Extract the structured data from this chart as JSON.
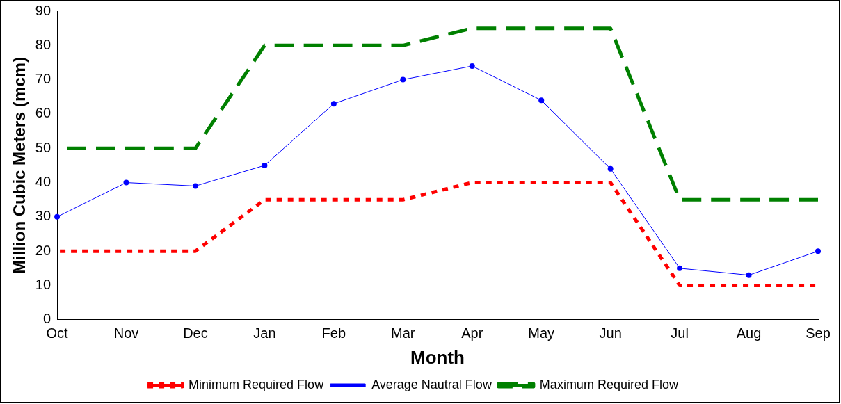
{
  "chart_data": {
    "type": "line",
    "xlabel": "Month",
    "ylabel": "Million Cubic Meters (mcm)",
    "categories": [
      "Oct",
      "Nov",
      "Dec",
      "Jan",
      "Feb",
      "Mar",
      "Apr",
      "May",
      "Jun",
      "Jul",
      "Aug",
      "Sep"
    ],
    "series": [
      {
        "name": "Minimum Required Flow",
        "color": "#ff0000",
        "line_style": "dotted",
        "marker": "none",
        "values": [
          20,
          20,
          20,
          35,
          35,
          35,
          40,
          40,
          40,
          10,
          10,
          10
        ]
      },
      {
        "name": "Average Nautral Flow",
        "color": "#0000ff",
        "line_style": "solid",
        "marker": "circle",
        "values": [
          30,
          40,
          39,
          45,
          63,
          70,
          74,
          64,
          44,
          15,
          13,
          20
        ]
      },
      {
        "name": "Maximum Required Flow",
        "color": "#008000",
        "line_style": "dashed",
        "marker": "none",
        "values": [
          50,
          50,
          50,
          80,
          80,
          80,
          85,
          85,
          85,
          35,
          35,
          35
        ]
      }
    ],
    "ylim": [
      0,
      90
    ],
    "yticks": [
      0,
      10,
      20,
      30,
      40,
      50,
      60,
      70,
      80,
      90
    ],
    "grid": false,
    "legend": "bottom"
  }
}
